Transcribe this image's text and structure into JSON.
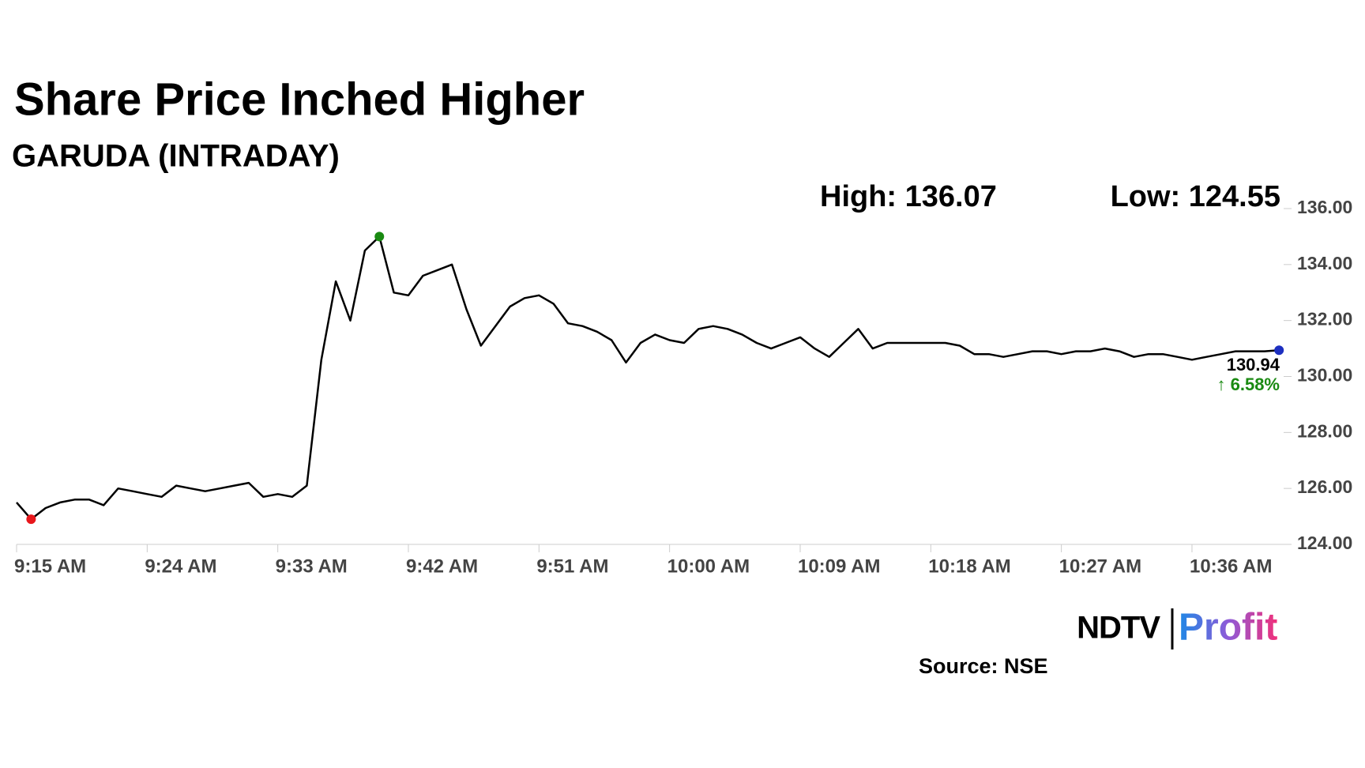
{
  "chart_data": {
    "type": "line",
    "title": "Share Price Inched Higher",
    "subtitle": "GARUDA (INTRADAY)",
    "annotations": [
      "High: 136.07",
      "Low: 124.55"
    ],
    "last_value_label": "130.94",
    "change_label": "↑ 6.58%",
    "categories": [
      "9:15 AM",
      "9:16 AM",
      "9:17 AM",
      "9:18 AM",
      "9:19 AM",
      "9:20 AM",
      "9:21 AM",
      "9:22 AM",
      "9:23 AM",
      "9:24 AM",
      "9:25 AM",
      "9:26 AM",
      "9:27 AM",
      "9:28 AM",
      "9:29 AM",
      "9:30 AM",
      "9:31 AM",
      "9:32 AM",
      "9:33 AM",
      "9:34 AM",
      "9:35 AM",
      "9:36 AM",
      "9:37 AM",
      "9:38 AM",
      "9:39 AM",
      "9:40 AM",
      "9:41 AM",
      "9:42 AM",
      "9:43 AM",
      "9:44 AM",
      "9:45 AM",
      "9:46 AM",
      "9:47 AM",
      "9:48 AM",
      "9:49 AM",
      "9:50 AM",
      "9:51 AM",
      "9:52 AM",
      "9:53 AM",
      "9:54 AM",
      "9:55 AM",
      "9:56 AM",
      "9:57 AM",
      "9:58 AM",
      "9:59 AM",
      "10:00 AM",
      "10:01 AM",
      "10:02 AM",
      "10:03 AM",
      "10:04 AM",
      "10:05 AM",
      "10:06 AM",
      "10:07 AM",
      "10:08 AM",
      "10:09 AM",
      "10:10 AM",
      "10:11 AM",
      "10:12 AM",
      "10:13 AM",
      "10:14 AM",
      "10:15 AM",
      "10:16 AM",
      "10:17 AM",
      "10:18 AM",
      "10:19 AM",
      "10:20 AM",
      "10:21 AM",
      "10:22 AM",
      "10:23 AM",
      "10:24 AM",
      "10:25 AM",
      "10:26 AM",
      "10:27 AM",
      "10:28 AM",
      "10:29 AM",
      "10:30 AM",
      "10:31 AM",
      "10:32 AM",
      "10:33 AM",
      "10:34 AM",
      "10:35 AM",
      "10:36 AM",
      "10:37 AM",
      "10:38 AM",
      "10:39 AM",
      "10:40 AM",
      "10:41 AM",
      "10:42 AM"
    ],
    "series": [
      {
        "name": "GARUDA",
        "color": "#000000",
        "values": [
          125.5,
          124.9,
          125.3,
          125.5,
          125.6,
          125.6,
          125.4,
          126.0,
          125.9,
          125.8,
          125.7,
          126.1,
          126.0,
          125.9,
          126.0,
          126.1,
          126.2,
          125.7,
          125.8,
          125.7,
          126.1,
          130.6,
          133.4,
          132.0,
          134.5,
          135.0,
          133.0,
          132.9,
          133.6,
          133.8,
          134.0,
          132.4,
          131.1,
          131.8,
          132.5,
          132.8,
          132.9,
          132.6,
          131.9,
          131.8,
          131.6,
          131.3,
          130.5,
          131.2,
          131.5,
          131.3,
          131.2,
          131.7,
          131.8,
          131.7,
          131.5,
          131.2,
          131.0,
          131.2,
          131.4,
          131.0,
          130.7,
          131.2,
          131.7,
          131.0,
          131.2,
          131.2,
          131.2,
          131.2,
          131.2,
          131.1,
          130.8,
          130.8,
          130.7,
          130.8,
          130.9,
          130.9,
          130.8,
          130.9,
          130.9,
          131.0,
          130.9,
          130.7,
          130.8,
          130.8,
          130.7,
          130.6,
          130.7,
          130.8,
          130.9,
          130.9,
          130.9,
          130.94
        ]
      }
    ],
    "low_color": "#e8171c",
    "high_color": "#1a8a12",
    "last_color": "#1d2fc0",
    "change_color": "#1a8a12",
    "xticks": [
      "9:15 AM",
      "9:24 AM",
      "9:33 AM",
      "9:42 AM",
      "9:51 AM",
      "10:00 AM",
      "10:09 AM",
      "10:18 AM",
      "10:27 AM",
      "10:36 AM"
    ],
    "ylim": [
      124,
      136
    ],
    "yticks": [
      {
        "value": 124,
        "label": "124.00"
      },
      {
        "value": 126,
        "label": "126.00"
      },
      {
        "value": 128,
        "label": "128.00"
      },
      {
        "value": 130,
        "label": "130.00"
      },
      {
        "value": 132,
        "label": "132.00"
      },
      {
        "value": 134,
        "label": "134.00"
      },
      {
        "value": 136,
        "label": "136.00"
      }
    ]
  },
  "logo": {
    "brand": "NDTV",
    "product": "Profit"
  },
  "source": "Source: NSE"
}
